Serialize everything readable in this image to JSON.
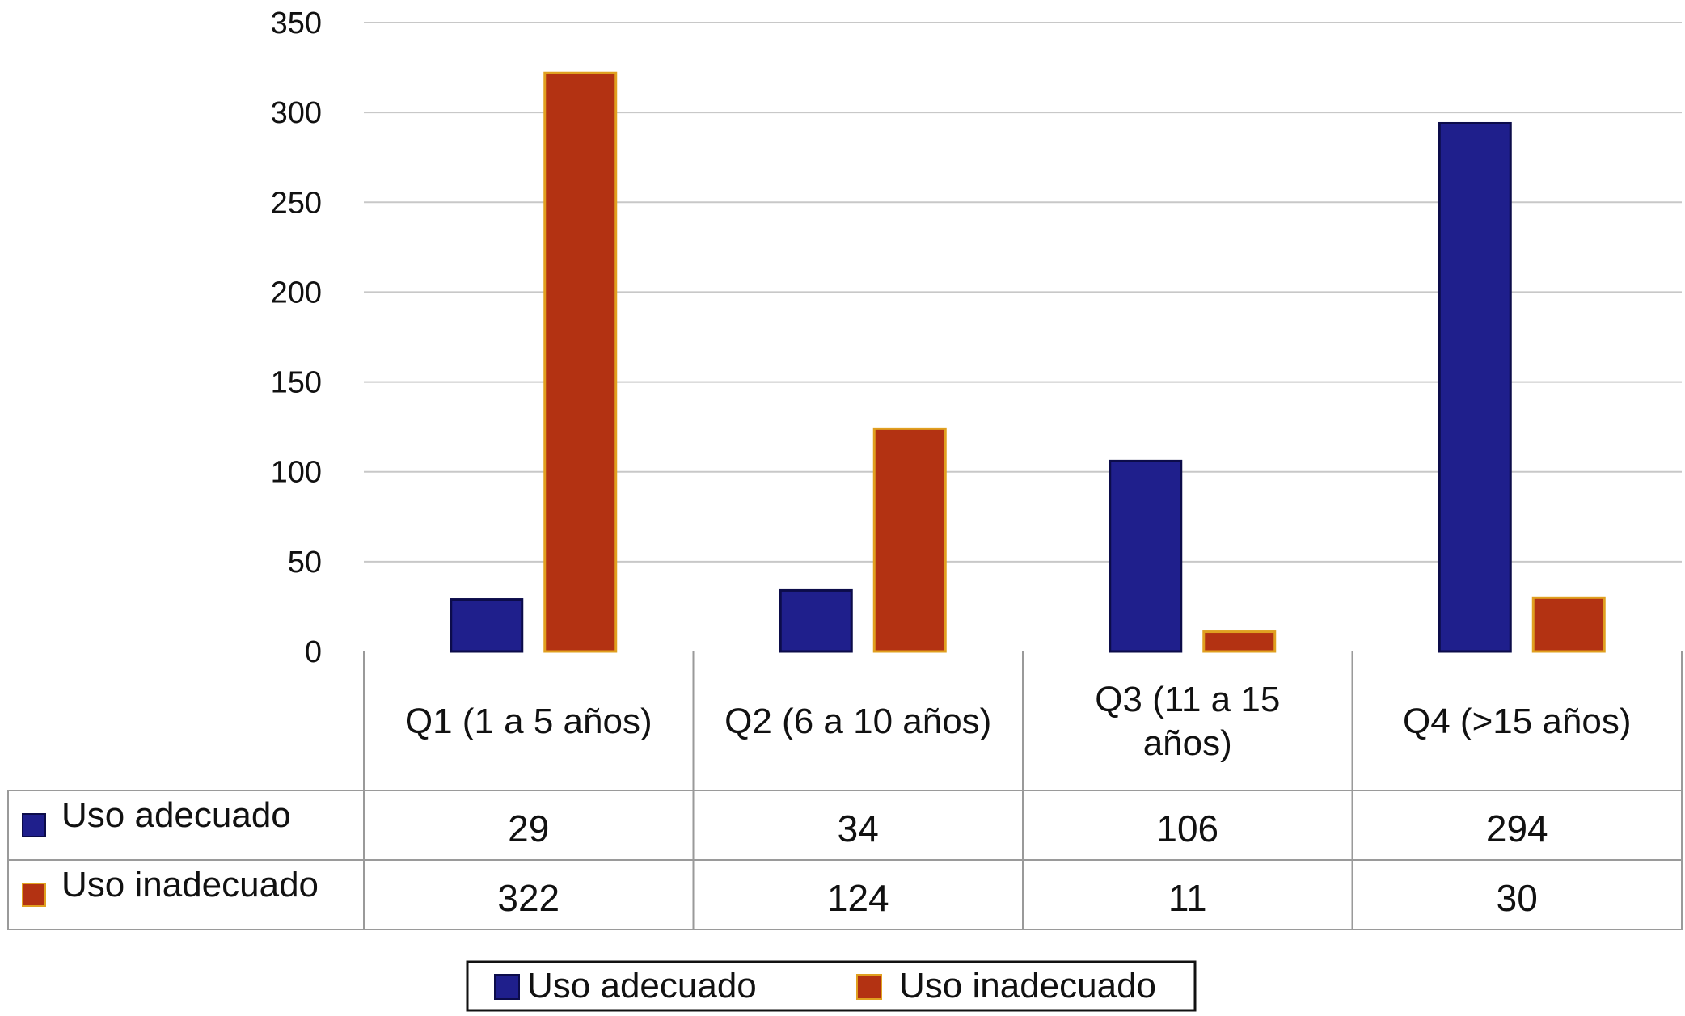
{
  "chart_data": {
    "type": "bar",
    "categories": [
      "Q1 (1 a 5 años)",
      "Q2 (6 a 10 años)",
      "Q3 (11 a 15 años)",
      "Q4 (>15 años)"
    ],
    "category_lines": [
      [
        "Q1 (1 a 5 años)"
      ],
      [
        "Q2 (6 a 10 años)"
      ],
      [
        "Q3 (11 a 15",
        "años)"
      ],
      [
        "Q4 (>15 años)"
      ]
    ],
    "series": [
      {
        "name": "Uso adecuado",
        "values": [
          29,
          34,
          106,
          294
        ],
        "color": "#1f1f8c"
      },
      {
        "name": "Uso inadecuado",
        "values": [
          322,
          124,
          11,
          30
        ],
        "color": "#b33212"
      }
    ],
    "yticks": [
      "0",
      "50",
      "100",
      "150",
      "200",
      "250",
      "300",
      "350"
    ],
    "ylim": [
      0,
      350
    ],
    "grid": true,
    "legend": "bottom-center",
    "data_table": true
  }
}
